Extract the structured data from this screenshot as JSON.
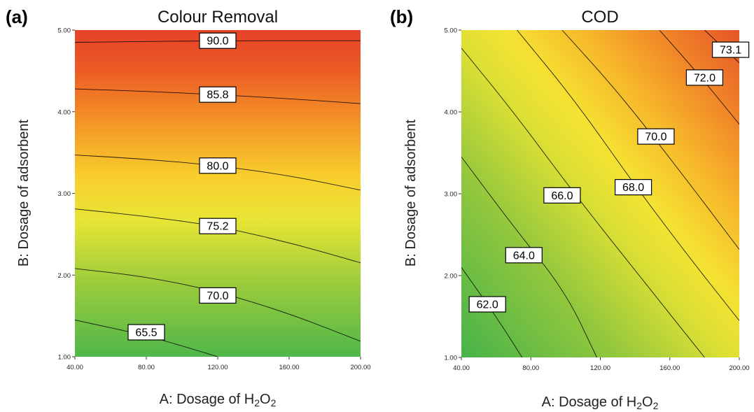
{
  "chart_data": [
    {
      "panel_label": "(a)",
      "type": "contour",
      "title": "Colour Removal",
      "xlabel_main": "A: Dosage of H",
      "xlabel_sub1": "2",
      "xlabel_mid": "O",
      "xlabel_sub2": "2",
      "ylabel": "B: Dosage of adsorbent",
      "xlim": [
        40,
        200
      ],
      "ylim": [
        1,
        5
      ],
      "xticks": [
        "40.00",
        "80.00",
        "120.00",
        "160.00",
        "200.00"
      ],
      "yticks": [
        "1.00",
        "2.00",
        "3.00",
        "4.00",
        "5.00"
      ],
      "contours": [
        {
          "level": "90.0",
          "points": [
            [
              40,
              4.85
            ],
            [
              120,
              4.87
            ],
            [
              200,
              4.87
            ]
          ],
          "label_at": [
            120,
            4.87
          ]
        },
        {
          "level": "85.8",
          "points": [
            [
              40,
              4.28
            ],
            [
              80,
              4.25
            ],
            [
              120,
              4.21
            ],
            [
              160,
              4.16
            ],
            [
              200,
              4.1
            ]
          ],
          "label_at": [
            120,
            4.21
          ]
        },
        {
          "level": "80.0",
          "points": [
            [
              40,
              3.47
            ],
            [
              80,
              3.42
            ],
            [
              120,
              3.34
            ],
            [
              160,
              3.22
            ],
            [
              200,
              3.04
            ]
          ],
          "label_at": [
            120,
            3.34
          ]
        },
        {
          "level": "75.2",
          "points": [
            [
              40,
              2.81
            ],
            [
              80,
              2.72
            ],
            [
              120,
              2.6
            ],
            [
              160,
              2.4
            ],
            [
              200,
              2.15
            ]
          ],
          "label_at": [
            120,
            2.6
          ]
        },
        {
          "level": "70.0",
          "points": [
            [
              40,
              2.08
            ],
            [
              80,
              1.98
            ],
            [
              120,
              1.8
            ],
            [
              160,
              1.53
            ],
            [
              200,
              1.19
            ]
          ],
          "label_at": [
            120,
            1.75
          ]
        },
        {
          "level": "65.5",
          "points": [
            [
              40,
              1.45
            ],
            [
              80,
              1.26
            ],
            [
              105,
              1.1
            ],
            [
              120,
              1.0
            ]
          ],
          "label_at": [
            80,
            1.3
          ]
        }
      ],
      "color_scale": [
        "#4ab548",
        "#97c93c",
        "#e6e631",
        "#f6b422",
        "#ef6a24",
        "#e64427"
      ]
    },
    {
      "panel_label": "(b)",
      "type": "contour",
      "title": "COD",
      "xlabel_main": "A: Dosage of H",
      "xlabel_sub1": "2",
      "xlabel_mid": "O",
      "xlabel_sub2": "2",
      "ylabel": "B: Dosage of adsorbent",
      "xlim": [
        40,
        200
      ],
      "ylim": [
        1,
        5
      ],
      "xticks": [
        "40.00",
        "80.00",
        "120.00",
        "160.00",
        "200.00"
      ],
      "yticks": [
        "1.00",
        "2.00",
        "3.00",
        "4.00",
        "5.00"
      ],
      "contours": [
        {
          "level": "73.1",
          "points": [
            [
              180,
              5.0
            ],
            [
              200,
              4.6
            ]
          ],
          "label_at": [
            195,
            4.76
          ]
        },
        {
          "level": "72.0",
          "points": [
            [
              154,
              5.0
            ],
            [
              175,
              4.5
            ],
            [
              200,
              3.85
            ]
          ],
          "label_at": [
            180,
            4.42
          ]
        },
        {
          "level": "70.0",
          "points": [
            [
              98,
              5.0
            ],
            [
              130,
              4.25
            ],
            [
              165,
              3.3
            ],
            [
              200,
              2.32
            ]
          ],
          "label_at": [
            152,
            3.7
          ]
        },
        {
          "level": "68.0",
          "points": [
            [
              72,
              5.0
            ],
            [
              105,
              4.15
            ],
            [
              140,
              3.1
            ],
            [
              172,
              2.2
            ],
            [
              200,
              1.45
            ]
          ],
          "label_at": [
            139,
            3.08
          ]
        },
        {
          "level": "66.0",
          "points": [
            [
              40,
              4.78
            ],
            [
              70,
              4.0
            ],
            [
              105,
              3.0
            ],
            [
              148,
              1.85
            ],
            [
              180,
              1.0
            ]
          ],
          "label_at": [
            98,
            2.98
          ]
        },
        {
          "level": "64.0",
          "points": [
            [
              40,
              3.45
            ],
            [
              70,
              2.6
            ],
            [
              100,
              1.8
            ],
            [
              118,
              1.0
            ]
          ],
          "label_at": [
            76,
            2.25
          ]
        },
        {
          "level": "62.0",
          "points": [
            [
              40,
              2.1
            ],
            [
              60,
              1.5
            ],
            [
              75,
              1.0
            ]
          ],
          "label_at": [
            55,
            1.65
          ]
        }
      ],
      "color_scale": [
        "#4ab548",
        "#97c93c",
        "#e6e631",
        "#f6b422",
        "#ef6a24",
        "#e64427"
      ]
    }
  ]
}
